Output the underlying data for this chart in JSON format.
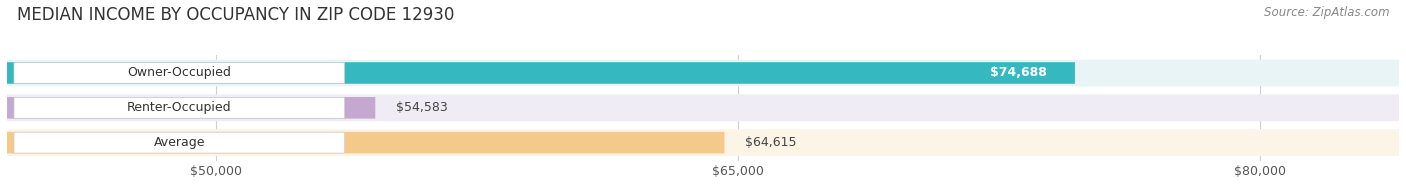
{
  "title": "MEDIAN INCOME BY OCCUPANCY IN ZIP CODE 12930",
  "source": "Source: ZipAtlas.com",
  "categories": [
    "Owner-Occupied",
    "Renter-Occupied",
    "Average"
  ],
  "values": [
    74688,
    54583,
    64615
  ],
  "value_labels": [
    "$74,688",
    "$54,583",
    "$64,615"
  ],
  "bar_colors": [
    "#35b8c0",
    "#c4a8d0",
    "#f5c98a"
  ],
  "bar_bg_colors": [
    "#e8f4f5",
    "#f0ecf5",
    "#fdf4e8"
  ],
  "value_label_colors": [
    "#ffffff",
    "#555555",
    "#555555"
  ],
  "xlim_min": 44000,
  "xlim_max": 84000,
  "xtick_values": [
    50000,
    65000,
    80000
  ],
  "xtick_labels": [
    "$50,000",
    "$65,000",
    "$80,000"
  ],
  "title_fontsize": 12,
  "source_fontsize": 8.5,
  "label_fontsize": 9,
  "value_fontsize": 9,
  "bar_height": 0.62,
  "background_color": "#ffffff",
  "grid_color": "#d0d0d0",
  "label_box_color": "#ffffff"
}
